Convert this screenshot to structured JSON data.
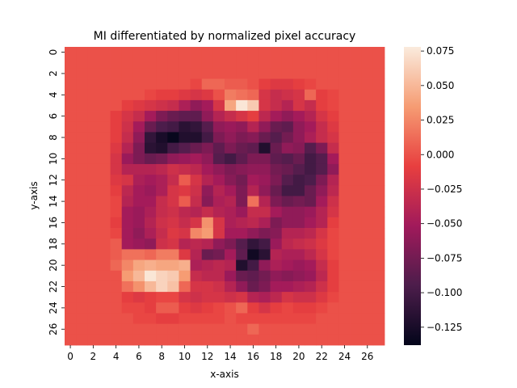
{
  "chart_data": {
    "type": "heatmap",
    "title": "MI differentiated by normalized pixel accuracy",
    "xlabel": "x-axis",
    "ylabel": "y-axis",
    "x_ticks": [
      "0",
      "2",
      "4",
      "6",
      "8",
      "10",
      "12",
      "14",
      "16",
      "18",
      "20",
      "22",
      "24",
      "26"
    ],
    "y_ticks": [
      "0",
      "2",
      "4",
      "6",
      "8",
      "10",
      "12",
      "14",
      "16",
      "18",
      "20",
      "22",
      "24",
      "26"
    ],
    "colorbar": {
      "min": -0.138,
      "max": 0.078,
      "ticks": [
        "0.075",
        "0.050",
        "0.025",
        "0.000",
        "−0.025",
        "−0.050",
        "−0.075",
        "−0.100",
        "−0.125"
      ],
      "tick_values": [
        0.075,
        0.05,
        0.025,
        0.0,
        -0.025,
        -0.05,
        -0.075,
        -0.1,
        -0.125
      ],
      "colormap": "rocket",
      "stops": [
        "#03051a",
        "#4c1d4b",
        "#a11a5b",
        "#e83f3f",
        "#f69c73",
        "#faebdd"
      ]
    },
    "values": [
      [
        0,
        0,
        0,
        0,
        0,
        0,
        0,
        0,
        0,
        0,
        0,
        0,
        0,
        0,
        0,
        0,
        0,
        0,
        0,
        0,
        0,
        0,
        0,
        0,
        0,
        0,
        0,
        0
      ],
      [
        0,
        0,
        0,
        0,
        0,
        0,
        0,
        0,
        0,
        0,
        0,
        0,
        0,
        0,
        0,
        0,
        0,
        0,
        0,
        0,
        0,
        0,
        0,
        0,
        0,
        0,
        0,
        0
      ],
      [
        0,
        0,
        0,
        0,
        0,
        0,
        0,
        0,
        0,
        0,
        0,
        0,
        0,
        0,
        0,
        0,
        0,
        0,
        0,
        0,
        0,
        0,
        0,
        0,
        0,
        0,
        0,
        0
      ],
      [
        0,
        0,
        0,
        0,
        0,
        0,
        0,
        0,
        0,
        0,
        0,
        -0.005,
        0.01,
        0.01,
        0.005,
        0.005,
        0,
        -0.01,
        -0.015,
        -0.015,
        -0.01,
        -0.005,
        0,
        0,
        0,
        0,
        0,
        0
      ],
      [
        0,
        0,
        0,
        0,
        0,
        0,
        0,
        -0.005,
        -0.01,
        -0.01,
        -0.015,
        -0.02,
        -0.015,
        0,
        0.02,
        0.015,
        0.01,
        -0.02,
        -0.03,
        -0.025,
        -0.02,
        0.01,
        -0.01,
        -0.005,
        0,
        0,
        0,
        0
      ],
      [
        0,
        0,
        0,
        0,
        0,
        -0.01,
        -0.015,
        -0.02,
        -0.025,
        -0.03,
        -0.045,
        -0.06,
        -0.05,
        -0.02,
        0.04,
        0.075,
        0.06,
        -0.02,
        -0.03,
        -0.04,
        -0.02,
        -0.03,
        -0.01,
        -0.005,
        0,
        0,
        0,
        0
      ],
      [
        0,
        0,
        0,
        0,
        -0.01,
        -0.02,
        -0.03,
        -0.05,
        -0.07,
        -0.08,
        -0.085,
        -0.085,
        -0.06,
        -0.04,
        -0.03,
        -0.02,
        -0.01,
        -0.035,
        -0.05,
        -0.06,
        -0.05,
        -0.04,
        -0.02,
        -0.01,
        0,
        0,
        0,
        0
      ],
      [
        0,
        0,
        0,
        0,
        -0.01,
        -0.025,
        -0.05,
        -0.08,
        -0.095,
        -0.1,
        -0.115,
        -0.11,
        -0.09,
        -0.06,
        -0.055,
        -0.06,
        -0.04,
        -0.06,
        -0.08,
        -0.085,
        -0.06,
        -0.05,
        -0.03,
        -0.015,
        0,
        0,
        0,
        0
      ],
      [
        0,
        0,
        0,
        0,
        -0.01,
        -0.03,
        -0.06,
        -0.11,
        -0.125,
        -0.135,
        -0.12,
        -0.12,
        -0.1,
        -0.07,
        -0.06,
        -0.07,
        -0.065,
        -0.08,
        -0.09,
        -0.075,
        -0.06,
        -0.045,
        -0.03,
        -0.02,
        0,
        0,
        0,
        0
      ],
      [
        0,
        0,
        0,
        0,
        -0.015,
        -0.04,
        -0.07,
        -0.115,
        -0.12,
        -0.1,
        -0.09,
        -0.08,
        -0.07,
        -0.085,
        -0.07,
        -0.08,
        -0.085,
        -0.12,
        -0.08,
        -0.06,
        -0.065,
        -0.09,
        -0.07,
        -0.03,
        0,
        0,
        0,
        0
      ],
      [
        0,
        0,
        0,
        0,
        -0.02,
        -0.055,
        -0.07,
        -0.08,
        -0.075,
        -0.06,
        -0.055,
        -0.05,
        -0.06,
        -0.09,
        -0.1,
        -0.085,
        -0.07,
        -0.07,
        -0.085,
        -0.09,
        -0.08,
        -0.1,
        -0.09,
        -0.05,
        0,
        0,
        0,
        0
      ],
      [
        0,
        0,
        0,
        0,
        -0.02,
        -0.04,
        -0.04,
        -0.04,
        -0.035,
        -0.025,
        -0.03,
        -0.035,
        -0.05,
        -0.06,
        -0.07,
        -0.065,
        -0.06,
        -0.06,
        -0.075,
        -0.08,
        -0.09,
        -0.1,
        -0.09,
        -0.06,
        0,
        0,
        0,
        0
      ],
      [
        0,
        0,
        0,
        0,
        -0.015,
        -0.02,
        -0.045,
        -0.05,
        -0.045,
        -0.03,
        0.005,
        -0.02,
        -0.04,
        -0.05,
        -0.065,
        -0.075,
        -0.05,
        -0.055,
        -0.07,
        -0.09,
        -0.1,
        -0.095,
        -0.07,
        -0.04,
        0,
        0,
        0,
        0
      ],
      [
        0,
        0,
        0,
        0,
        -0.01,
        -0.035,
        -0.05,
        -0.055,
        -0.045,
        -0.02,
        -0.015,
        -0.025,
        -0.06,
        -0.04,
        -0.05,
        -0.07,
        -0.04,
        -0.06,
        -0.08,
        -0.1,
        -0.1,
        -0.08,
        -0.06,
        -0.035,
        0,
        0,
        0,
        0
      ],
      [
        0,
        0,
        0,
        0,
        -0.005,
        -0.04,
        -0.05,
        -0.05,
        -0.03,
        -0.02,
        0.005,
        -0.03,
        -0.065,
        -0.045,
        -0.04,
        -0.07,
        0.015,
        -0.04,
        -0.07,
        -0.08,
        -0.075,
        -0.08,
        -0.05,
        -0.025,
        0,
        0,
        0,
        0
      ],
      [
        0,
        0,
        0,
        0,
        -0.005,
        -0.05,
        -0.055,
        -0.045,
        -0.03,
        -0.025,
        -0.035,
        -0.04,
        -0.03,
        -0.04,
        -0.045,
        -0.055,
        -0.03,
        -0.03,
        -0.05,
        -0.06,
        -0.06,
        -0.055,
        -0.04,
        -0.02,
        0,
        0,
        0,
        0
      ],
      [
        0,
        0,
        0,
        0,
        -0.01,
        -0.05,
        -0.055,
        -0.04,
        -0.025,
        -0.02,
        -0.03,
        -0.02,
        0.03,
        -0.02,
        -0.045,
        -0.04,
        -0.035,
        -0.045,
        -0.07,
        -0.06,
        -0.06,
        -0.05,
        -0.04,
        -0.01,
        0,
        0,
        0,
        0
      ],
      [
        0,
        0,
        0,
        0,
        -0.005,
        -0.05,
        -0.06,
        -0.045,
        -0.03,
        -0.015,
        -0.02,
        0.025,
        0.035,
        -0.02,
        -0.05,
        -0.05,
        -0.06,
        -0.07,
        -0.065,
        -0.04,
        -0.04,
        -0.035,
        -0.02,
        -0.005,
        0,
        0,
        0,
        0
      ],
      [
        0,
        0,
        0,
        0,
        0.005,
        -0.05,
        -0.055,
        -0.06,
        -0.025,
        -0.02,
        -0.04,
        -0.035,
        -0.04,
        -0.06,
        -0.07,
        -0.09,
        -0.11,
        -0.1,
        -0.055,
        -0.035,
        -0.03,
        -0.025,
        -0.015,
        -0.005,
        0,
        0,
        0,
        0
      ],
      [
        0,
        0,
        0,
        0,
        0.005,
        0.015,
        0.015,
        0.01,
        0.02,
        0.02,
        -0.015,
        -0.04,
        -0.08,
        -0.075,
        -0.05,
        -0.085,
        -0.13,
        -0.115,
        -0.04,
        -0.045,
        -0.045,
        -0.035,
        -0.02,
        -0.005,
        0,
        0,
        0,
        0
      ],
      [
        0,
        0,
        0,
        0,
        0.01,
        0.025,
        0.04,
        0.045,
        0.04,
        0.04,
        0.045,
        -0.045,
        -0.04,
        -0.035,
        -0.04,
        -0.12,
        -0.1,
        -0.06,
        -0.045,
        -0.05,
        -0.055,
        -0.05,
        -0.03,
        -0.01,
        0,
        0,
        0,
        0
      ],
      [
        0,
        0,
        0,
        0,
        0,
        0.035,
        0.05,
        0.075,
        0.065,
        0.06,
        0.035,
        -0.03,
        -0.035,
        -0.035,
        -0.055,
        -0.08,
        -0.085,
        -0.075,
        -0.06,
        -0.065,
        -0.06,
        -0.055,
        -0.035,
        -0.01,
        0,
        0,
        0,
        0
      ],
      [
        0,
        0,
        0,
        0,
        0,
        0.015,
        0.03,
        0.05,
        0.065,
        0.055,
        0.01,
        -0.02,
        -0.02,
        -0.025,
        -0.04,
        -0.06,
        -0.08,
        -0.07,
        -0.05,
        -0.05,
        -0.045,
        -0.04,
        -0.025,
        -0.01,
        0,
        0,
        0,
        0
      ],
      [
        0,
        0,
        0,
        0,
        0,
        -0.01,
        -0.015,
        -0.01,
        -0.005,
        -0.005,
        -0.02,
        -0.025,
        -0.02,
        -0.02,
        -0.025,
        -0.02,
        -0.04,
        -0.045,
        -0.035,
        -0.02,
        -0.025,
        -0.025,
        -0.015,
        -0.005,
        0,
        0,
        0,
        0
      ],
      [
        0,
        0,
        0,
        0,
        0,
        -0.005,
        -0.005,
        -0.01,
        0.005,
        0.005,
        -0.01,
        -0.015,
        -0.01,
        -0.005,
        0,
        0.01,
        -0.01,
        -0.02,
        -0.01,
        -0.005,
        -0.01,
        -0.01,
        -0.005,
        0,
        0,
        0,
        0,
        0
      ],
      [
        0,
        0,
        0,
        0,
        0,
        0,
        -0.005,
        -0.005,
        -0.01,
        -0.01,
        -0.005,
        -0.005,
        -0.005,
        -0.005,
        0,
        -0.005,
        -0.005,
        -0.005,
        -0.005,
        -0.005,
        -0.005,
        -0.005,
        0,
        0,
        0,
        0,
        0,
        0
      ],
      [
        0,
        0,
        0,
        0,
        0,
        0,
        0,
        0,
        0,
        0,
        0,
        0,
        0,
        0,
        0,
        0,
        0.01,
        0,
        0,
        0,
        0,
        0,
        0,
        0,
        0,
        0,
        0,
        0
      ],
      [
        0,
        0,
        0,
        0,
        0,
        0,
        0,
        0,
        0,
        0,
        0,
        0,
        0,
        0,
        0,
        0,
        0,
        0,
        0,
        0,
        0,
        0,
        0,
        0,
        0,
        0,
        0,
        0
      ]
    ]
  }
}
